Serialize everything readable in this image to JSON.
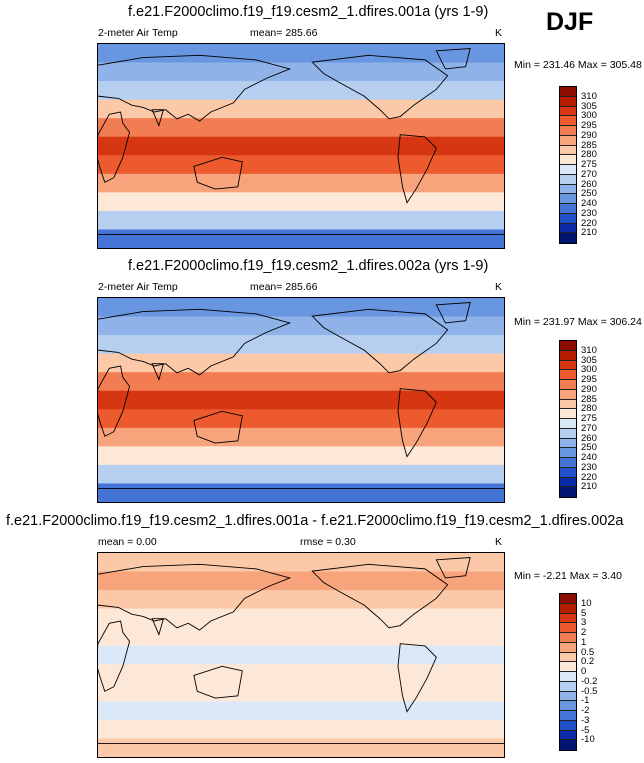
{
  "season": "DJF",
  "panels": [
    {
      "id": "p1",
      "title": "f.e21.F2000climo.f19_f19.cesm2_1.dfires.001a (yrs 1-9)",
      "left_label": "2-meter Air Temp",
      "center_label": "mean= 285.66",
      "units": "K",
      "minmax": "Min = 231.46 Max = 305.48",
      "kind": "abs"
    },
    {
      "id": "p2",
      "title": "f.e21.F2000climo.f19_f19.cesm2_1.dfires.002a (yrs 1-9)",
      "left_label": "2-meter Air Temp",
      "center_label": "mean= 285.66",
      "units": "K",
      "minmax": "Min = 231.97 Max = 306.24",
      "kind": "abs"
    },
    {
      "id": "p3",
      "title": "f.e21.F2000climo.f19_f19.cesm2_1.dfires.001a - f.e21.F2000climo.f19_f19.cesm2_1.dfires.002a",
      "left_label": "mean =    0.00",
      "center_label": "rmse =    0.30",
      "units": "K",
      "minmax": "Min =  -2.21 Max =   3.40",
      "kind": "diff"
    }
  ],
  "chart_data": [
    {
      "type": "heatmap",
      "title": "f.e21.F2000climo.f19_f19.cesm2_1.dfires.001a (yrs 1-9)",
      "variable": "2-meter Air Temp",
      "units": "K",
      "mean": 285.66,
      "min": 231.46,
      "max": 305.48,
      "colorbar_levels": [
        310,
        305,
        300,
        295,
        290,
        285,
        280,
        275,
        270,
        260,
        250,
        240,
        230,
        220,
        210
      ],
      "colorbar_colors": [
        "#8a0d00",
        "#b51c00",
        "#d63612",
        "#ec5a2e",
        "#f27d52",
        "#f7a37c",
        "#fbc8a8",
        "#fde8d8",
        "#dbe8f8",
        "#b6cff0",
        "#8fb3e8",
        "#6996e0",
        "#4474d6",
        "#2250c8",
        "#0a2aa8",
        "#001470"
      ],
      "zonal_band_values": [
        {
          "lat": "90N-75N",
          "value": 245
        },
        {
          "lat": "75N-60N",
          "value": 255
        },
        {
          "lat": "60N-45N",
          "value": 268
        },
        {
          "lat": "45N-30N",
          "value": 280
        },
        {
          "lat": "30N-15N",
          "value": 293
        },
        {
          "lat": "15N-15S",
          "value": 301
        },
        {
          "lat": "15S-30S",
          "value": 297
        },
        {
          "lat": "30S-45S",
          "value": 288
        },
        {
          "lat": "45S-60S",
          "value": 278
        },
        {
          "lat": "60S-75S",
          "value": 262
        },
        {
          "lat": "75S-90S",
          "value": 238
        }
      ]
    },
    {
      "type": "heatmap",
      "title": "f.e21.F2000climo.f19_f19.cesm2_1.dfires.002a (yrs 1-9)",
      "variable": "2-meter Air Temp",
      "units": "K",
      "mean": 285.66,
      "min": 231.97,
      "max": 306.24,
      "colorbar_levels": [
        310,
        305,
        300,
        295,
        290,
        285,
        280,
        275,
        270,
        260,
        250,
        240,
        230,
        220,
        210
      ],
      "colorbar_colors": [
        "#8a0d00",
        "#b51c00",
        "#d63612",
        "#ec5a2e",
        "#f27d52",
        "#f7a37c",
        "#fbc8a8",
        "#fde8d8",
        "#dbe8f8",
        "#b6cff0",
        "#8fb3e8",
        "#6996e0",
        "#4474d6",
        "#2250c8",
        "#0a2aa8",
        "#001470"
      ],
      "zonal_band_values": [
        {
          "lat": "90N-75N",
          "value": 246
        },
        {
          "lat": "75N-60N",
          "value": 255
        },
        {
          "lat": "60N-45N",
          "value": 268
        },
        {
          "lat": "45N-30N",
          "value": 280
        },
        {
          "lat": "30N-15N",
          "value": 293
        },
        {
          "lat": "15N-15S",
          "value": 301
        },
        {
          "lat": "15S-30S",
          "value": 297
        },
        {
          "lat": "30S-45S",
          "value": 288
        },
        {
          "lat": "45S-60S",
          "value": 278
        },
        {
          "lat": "60S-75S",
          "value": 262
        },
        {
          "lat": "75S-90S",
          "value": 238
        }
      ]
    },
    {
      "type": "heatmap",
      "title": "f.e21.F2000climo.f19_f19.cesm2_1.dfires.001a - f.e21.F2000climo.f19_f19.cesm2_1.dfires.002a",
      "variable": "2-meter Air Temp difference",
      "units": "K",
      "mean": 0.0,
      "rmse": 0.3,
      "min": -2.21,
      "max": 3.4,
      "colorbar_levels": [
        10,
        5,
        3,
        2,
        1,
        0.5,
        0.2,
        0,
        -0.2,
        -0.5,
        -1,
        -2,
        -3,
        -5,
        -10
      ],
      "colorbar_colors": [
        "#8a0d00",
        "#b51c00",
        "#d63612",
        "#ec5a2e",
        "#f27d52",
        "#f7a37c",
        "#fbc8a8",
        "#fde8d8",
        "#dbe8f8",
        "#b6cff0",
        "#8fb3e8",
        "#6996e0",
        "#4474d6",
        "#2250c8",
        "#0a2aa8",
        "#001470"
      ],
      "zonal_band_values": [
        {
          "lat": "90N-75N",
          "value": 0.3
        },
        {
          "lat": "75N-60N",
          "value": 0.5
        },
        {
          "lat": "60N-45N",
          "value": 0.4
        },
        {
          "lat": "45N-30N",
          "value": 0.1
        },
        {
          "lat": "30N-15N",
          "value": 0.0
        },
        {
          "lat": "15N-15S",
          "value": -0.1
        },
        {
          "lat": "15S-30S",
          "value": 0.0
        },
        {
          "lat": "30S-45S",
          "value": 0.1
        },
        {
          "lat": "45S-60S",
          "value": -0.1
        },
        {
          "lat": "60S-75S",
          "value": 0.1
        },
        {
          "lat": "75S-90S",
          "value": 0.2
        }
      ]
    }
  ]
}
